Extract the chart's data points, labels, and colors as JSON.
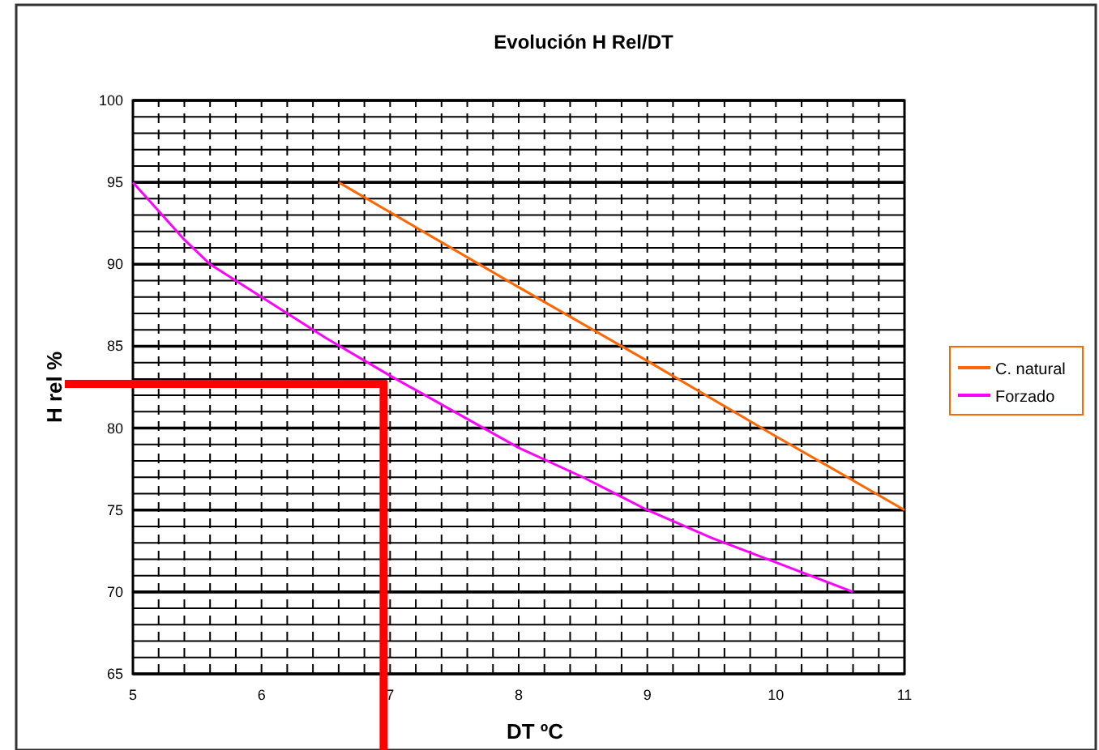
{
  "chart_data": {
    "type": "line",
    "title": "Evolución H Rel/DT",
    "xlabel": "DT ºC",
    "ylabel": "H rel %",
    "xlim": [
      5,
      11
    ],
    "xticks": [
      5,
      6,
      7,
      8,
      9,
      10,
      11
    ],
    "ylim": [
      65,
      100
    ],
    "yticks": [
      65,
      70,
      75,
      80,
      85,
      90,
      95,
      100
    ],
    "grid": true,
    "legend": "right",
    "line_style": "solid",
    "marker": "none",
    "series": [
      {
        "name": "C. natural",
        "color": "#ff6600",
        "x": [
          6.6,
          8,
          9,
          10,
          11
        ],
        "values": [
          95,
          88.6,
          84.1,
          79.5,
          75
        ]
      },
      {
        "name": "Forzado",
        "color": "#ff00ff",
        "x": [
          5,
          5.4,
          5.6,
          6,
          6.5,
          7,
          7.5,
          8,
          8.5,
          9,
          9.5,
          10,
          10.6
        ],
        "values": [
          95,
          91.5,
          90,
          88,
          85.5,
          83.2,
          81,
          78.8,
          77,
          75,
          73.3,
          71.8,
          70
        ]
      }
    ],
    "ref_lines": [
      {
        "axis": "y",
        "value": 82.7,
        "color": "#ff0000"
      },
      {
        "axis": "x",
        "value": 6.95,
        "color": "#ff0000"
      }
    ]
  }
}
